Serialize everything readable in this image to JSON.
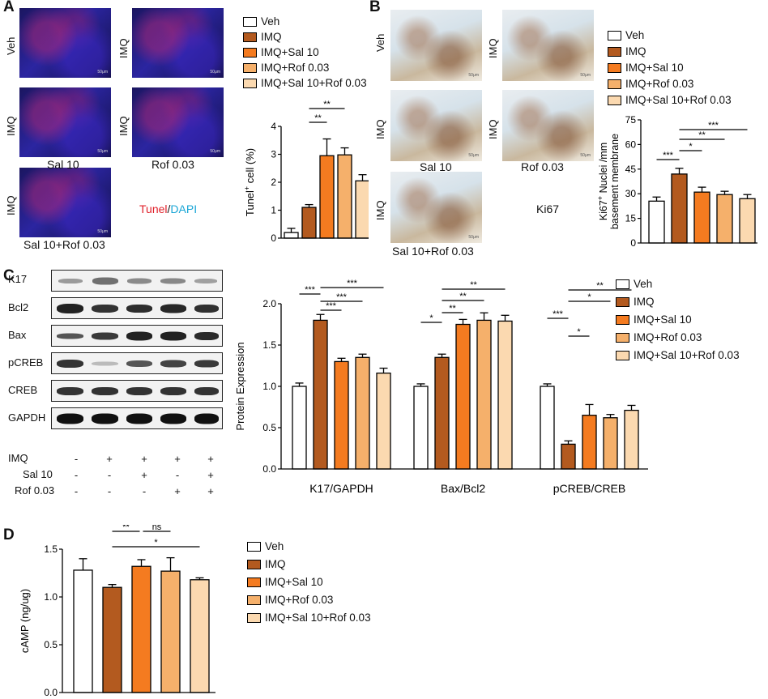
{
  "panels": {
    "a": "A",
    "b": "B",
    "c": "C",
    "d": "D"
  },
  "groups": [
    "Veh",
    "IMQ",
    "IMQ+Sal 10",
    "IMQ+Rof 0.03",
    "IMQ+Sal 10+Rof 0.03"
  ],
  "colors": [
    "#ffffff",
    "#b35a1f",
    "#f47b20",
    "#f5b06b",
    "#fbd9b0"
  ],
  "panel_a": {
    "image_labels": {
      "veh": "Veh",
      "imq1": "IMQ",
      "imq2": "IMQ",
      "imq3": "IMQ",
      "imq4": "IMQ"
    },
    "captions": {
      "sal": "Sal 10",
      "rof": "Rof 0.03",
      "combo": "Sal 10+Rof 0.03"
    },
    "stain_tunel": "Tunel",
    "stain_sep": "/",
    "stain_dapi": "DAPI",
    "scale": "50μm"
  },
  "panel_b": {
    "image_labels": {
      "veh": "Veh",
      "imq1": "IMQ",
      "imq2": "IMQ",
      "imq3": "IMQ",
      "imq4": "IMQ"
    },
    "captions": {
      "sal": "Sal 10",
      "rof": "Rof 0.03",
      "combo": "Sal 10+Rof 0.03"
    },
    "stain": "Ki67",
    "scale": "50μm"
  },
  "panel_c": {
    "blot_labels": [
      "K17",
      "Bcl2",
      "Bax",
      "pCREB",
      "CREB",
      "GAPDH"
    ],
    "treatments": [
      {
        "name": "IMQ",
        "signs": [
          "-",
          "+",
          "+",
          "+",
          "+"
        ]
      },
      {
        "name": "Sal 10",
        "signs": [
          "-",
          "-",
          "+",
          "-",
          "+"
        ]
      },
      {
        "name": "Rof 0.03",
        "signs": [
          "-",
          "-",
          "-",
          "+",
          "+"
        ]
      }
    ]
  },
  "chart_data": [
    {
      "id": "tunel",
      "type": "bar",
      "ylabel_main": "Tunel",
      "ylabel_sup": "+",
      "ylabel_rest": " cell (%)",
      "ylim": [
        0,
        4
      ],
      "yticks": [
        "0",
        "1",
        "2",
        "3",
        "4"
      ],
      "categories": [
        "Veh",
        "IMQ",
        "IMQ+Sal 10",
        "IMQ+Rof 0.03",
        "IMQ+Sal 10+Rof 0.03"
      ],
      "values": [
        0.2,
        1.1,
        2.95,
        2.98,
        2.05
      ],
      "errors": [
        0.15,
        0.1,
        0.6,
        0.25,
        0.22
      ],
      "significance": [
        {
          "from": 1,
          "to": 3,
          "label": "**"
        },
        {
          "from": 1,
          "to": 2,
          "label": "**"
        }
      ]
    },
    {
      "id": "ki67",
      "type": "bar",
      "ylabel_line1": "Ki67",
      "ylabel_sup": "+",
      "ylabel_line1_rest": " Nuclei /mm",
      "ylabel_line2": "basement membrane",
      "ylim": [
        0,
        75
      ],
      "yticks": [
        "0",
        "15",
        "30",
        "45",
        "60",
        "75"
      ],
      "categories": [
        "Veh",
        "IMQ",
        "IMQ+Sal 10",
        "IMQ+Rof 0.03",
        "IMQ+Sal 10+Rof 0.03"
      ],
      "values": [
        25.5,
        42,
        31,
        29.5,
        27
      ],
      "errors": [
        2.5,
        3.5,
        3,
        2,
        2.5
      ],
      "significance": [
        {
          "from": 1,
          "to": 4,
          "label": "***"
        },
        {
          "from": 1,
          "to": 3,
          "label": "**"
        },
        {
          "from": 1,
          "to": 2,
          "label": "*"
        },
        {
          "from": 0,
          "to": 1,
          "label": "***"
        }
      ]
    },
    {
      "id": "protein",
      "type": "bar",
      "ylabel": "Protein Expression",
      "ylim": [
        0,
        2.0
      ],
      "yticks": [
        "0.0",
        "0.5",
        "1.0",
        "1.5",
        "2.0"
      ],
      "categories": [
        "K17/GAPDH",
        "Bax/Bcl2",
        "pCREB/CREB"
      ],
      "series": [
        {
          "name": "Veh",
          "values": [
            1.0,
            1.0,
            1.0
          ],
          "errors": [
            0.04,
            0.03,
            0.03
          ]
        },
        {
          "name": "IMQ",
          "values": [
            1.8,
            1.35,
            0.3
          ],
          "errors": [
            0.07,
            0.04,
            0.04
          ]
        },
        {
          "name": "IMQ+Sal 10",
          "values": [
            1.3,
            1.75,
            0.65
          ],
          "errors": [
            0.04,
            0.06,
            0.13
          ]
        },
        {
          "name": "IMQ+Rof 0.03",
          "values": [
            1.35,
            1.8,
            0.62
          ],
          "errors": [
            0.04,
            0.09,
            0.04
          ]
        },
        {
          "name": "IMQ+Sal 10+Rof 0.03",
          "values": [
            1.16,
            1.79,
            0.71
          ],
          "errors": [
            0.06,
            0.07,
            0.06
          ]
        }
      ],
      "significance": [
        {
          "cat": 0,
          "from": 1,
          "to": 4,
          "label": "***"
        },
        {
          "cat": 0,
          "from": 0,
          "to": 1,
          "label": "***"
        },
        {
          "cat": 0,
          "from": 1,
          "to": 3,
          "label": "***"
        },
        {
          "cat": 0,
          "from": 1,
          "to": 2,
          "label": "***"
        },
        {
          "cat": 1,
          "from": 1,
          "to": 4,
          "label": "**"
        },
        {
          "cat": 1,
          "from": 1,
          "to": 3,
          "label": "**"
        },
        {
          "cat": 1,
          "from": 1,
          "to": 2,
          "label": "**"
        },
        {
          "cat": 1,
          "from": 0,
          "to": 1,
          "label": "*"
        },
        {
          "cat": 2,
          "from": 1,
          "to": 4,
          "label": "**"
        },
        {
          "cat": 2,
          "from": 1,
          "to": 3,
          "label": "*"
        },
        {
          "cat": 2,
          "from": 0,
          "to": 1,
          "label": "***"
        },
        {
          "cat": 2,
          "from": 1,
          "to": 2,
          "label": "*"
        }
      ]
    },
    {
      "id": "camp",
      "type": "bar",
      "ylabel": "cAMP (ng/ug)",
      "ylim": [
        0,
        1.5
      ],
      "yticks": [
        "0.0",
        "0.5",
        "1.0",
        "1.5"
      ],
      "categories": [
        "Veh",
        "IMQ",
        "IMQ+Sal 10",
        "IMQ+Rof 0.03",
        "IMQ+Sal 10+Rof 0.03"
      ],
      "values": [
        1.28,
        1.1,
        1.32,
        1.27,
        1.18
      ],
      "errors": [
        0.12,
        0.03,
        0.07,
        0.14,
        0.02
      ],
      "significance": [
        {
          "from": 1,
          "to": 2,
          "label": "**"
        },
        {
          "from": 2,
          "to": 3,
          "label": "ns"
        },
        {
          "from": 1,
          "to": 4,
          "label": "*"
        }
      ]
    }
  ]
}
